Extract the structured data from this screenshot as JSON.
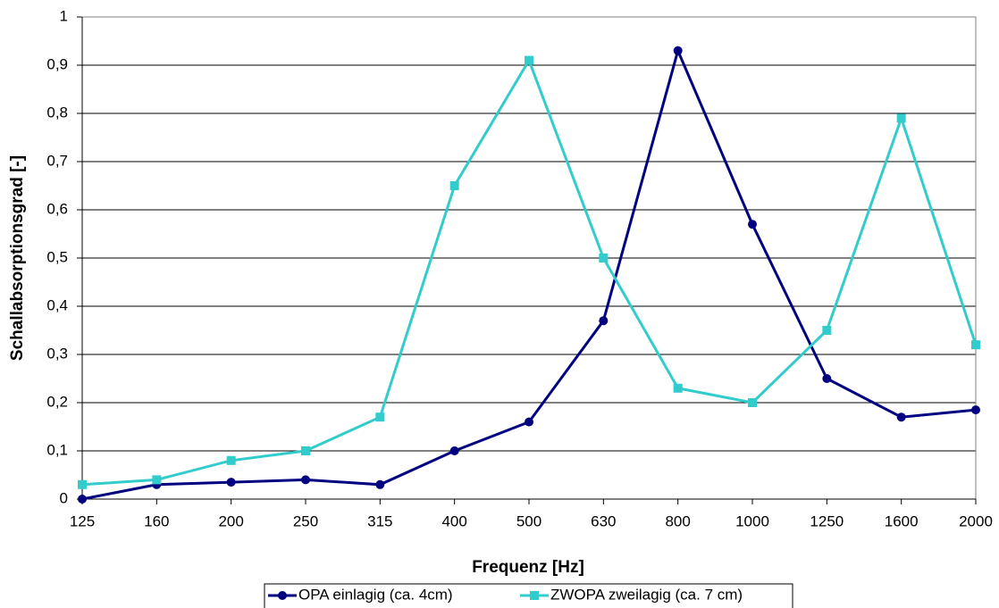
{
  "chart_data": {
    "type": "line",
    "x_label": "Frequenz [Hz]",
    "y_label": "Schallabsorptionsgrad [-]",
    "categories": [
      "125",
      "160",
      "200",
      "250",
      "315",
      "400",
      "500",
      "630",
      "800",
      "1000",
      "1250",
      "1600",
      "2000"
    ],
    "series": [
      {
        "name": "OPA einlagig (ca. 4cm)",
        "color": "#000080",
        "marker": "circle",
        "values": [
          0,
          0.03,
          0.035,
          0.04,
          0.03,
          0.1,
          0.16,
          0.37,
          0.93,
          0.57,
          0.25,
          0.17,
          0.185
        ]
      },
      {
        "name": "ZWOPA zweilagig (ca. 7 cm)",
        "color": "#33cccc",
        "marker": "square",
        "values": [
          0.03,
          0.04,
          0.08,
          0.1,
          0.17,
          0.65,
          0.91,
          0.5,
          0.23,
          0.2,
          0.35,
          0.79,
          0.32
        ]
      }
    ],
    "ylim": [
      0,
      1
    ],
    "yticks": [
      0,
      {
        "value": 0.1,
        "label": "0,1"
      },
      {
        "value": 0.2,
        "label": "0,2"
      },
      {
        "value": 0.3,
        "label": "0,3"
      },
      {
        "value": 0.4,
        "label": "0,4"
      },
      {
        "value": 0.5,
        "label": "0,5"
      },
      {
        "value": 0.6,
        "label": "0,6"
      },
      {
        "value": 0.7,
        "label": "0,7"
      },
      {
        "value": 0.8,
        "label": "0,8"
      },
      {
        "value": 0.9,
        "label": "0,9"
      },
      1
    ],
    "grid": true,
    "legend": "bottom"
  }
}
